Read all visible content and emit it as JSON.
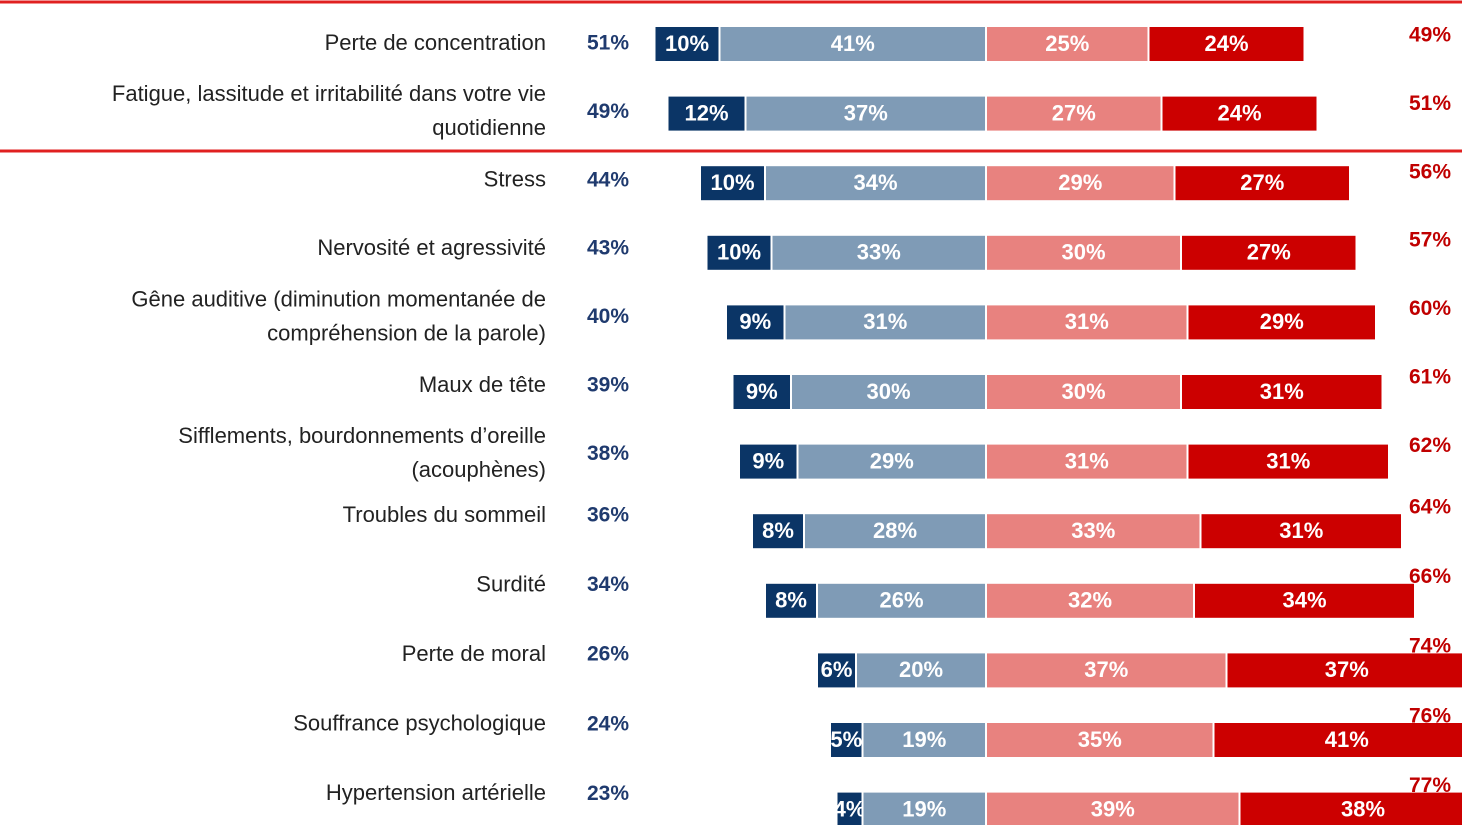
{
  "chart_data": {
    "type": "diverging_bar",
    "categories": [
      [
        "Perte de concentration"
      ],
      [
        "Fatigue, lassitude et irritabilité dans votre vie",
        "quotidienne"
      ],
      [
        "Stress"
      ],
      [
        "Nervosité et agressivité"
      ],
      [
        "Gêne auditive (diminution momentanée de",
        "compréhension de la parole)"
      ],
      [
        "Maux de tête"
      ],
      [
        "Sifflements, bourdonnements d’oreille",
        "(acouphènes)"
      ],
      [
        "Troubles du sommeil"
      ],
      [
        "Surdité"
      ],
      [
        "Perte de moral"
      ],
      [
        "Souffrance psychologique"
      ],
      [
        "Hypertension artérielle"
      ]
    ],
    "series": [
      {
        "color": "#0b3566",
        "values": [
          10,
          12,
          10,
          10,
          9,
          9,
          9,
          8,
          8,
          6,
          5,
          4
        ],
        "value_labels": [
          "10%",
          "12%",
          "10%",
          "10%",
          "9%",
          "9%",
          "9%",
          "8%",
          "8%",
          "6%",
          "5%",
          "4%"
        ]
      },
      {
        "color": "#7f9bb6",
        "values": [
          41,
          37,
          34,
          33,
          31,
          30,
          29,
          28,
          26,
          20,
          19,
          19
        ],
        "value_labels": [
          "41%",
          "37%",
          "34%",
          "33%",
          "31%",
          "30%",
          "29%",
          "28%",
          "26%",
          "20%",
          "19%",
          "19%"
        ]
      },
      {
        "color": "#e8827f",
        "values": [
          25,
          27,
          29,
          30,
          31,
          30,
          31,
          33,
          32,
          37,
          35,
          39
        ],
        "value_labels": [
          "25%",
          "27%",
          "29%",
          "30%",
          "31%",
          "30%",
          "31%",
          "33%",
          "32%",
          "37%",
          "35%",
          "39%"
        ]
      },
      {
        "color": "#cc0000",
        "values": [
          24,
          24,
          27,
          27,
          29,
          31,
          31,
          31,
          34,
          37,
          41,
          38
        ],
        "value_labels": [
          "24%",
          "24%",
          "27%",
          "27%",
          "29%",
          "31%",
          "31%",
          "31%",
          "34%",
          "37%",
          "41%",
          "38%"
        ]
      }
    ],
    "totals": [
      {
        "color": "#1f3a6e",
        "values": [
          51,
          49,
          44,
          43,
          40,
          39,
          38,
          36,
          34,
          26,
          24,
          23
        ],
        "value_labels": [
          "51%",
          "49%",
          "44%",
          "43%",
          "40%",
          "39%",
          "38%",
          "36%",
          "34%",
          "26%",
          "24%",
          "23%"
        ]
      },
      {
        "color": "#c00000",
        "values": [
          49,
          51,
          56,
          57,
          60,
          61,
          62,
          64,
          66,
          74,
          76,
          77
        ],
        "value_labels": [
          "49%",
          "51%",
          "56%",
          "57%",
          "60%",
          "61%",
          "62%",
          "64%",
          "66%",
          "74%",
          "76%",
          "77%"
        ]
      }
    ]
  }
}
